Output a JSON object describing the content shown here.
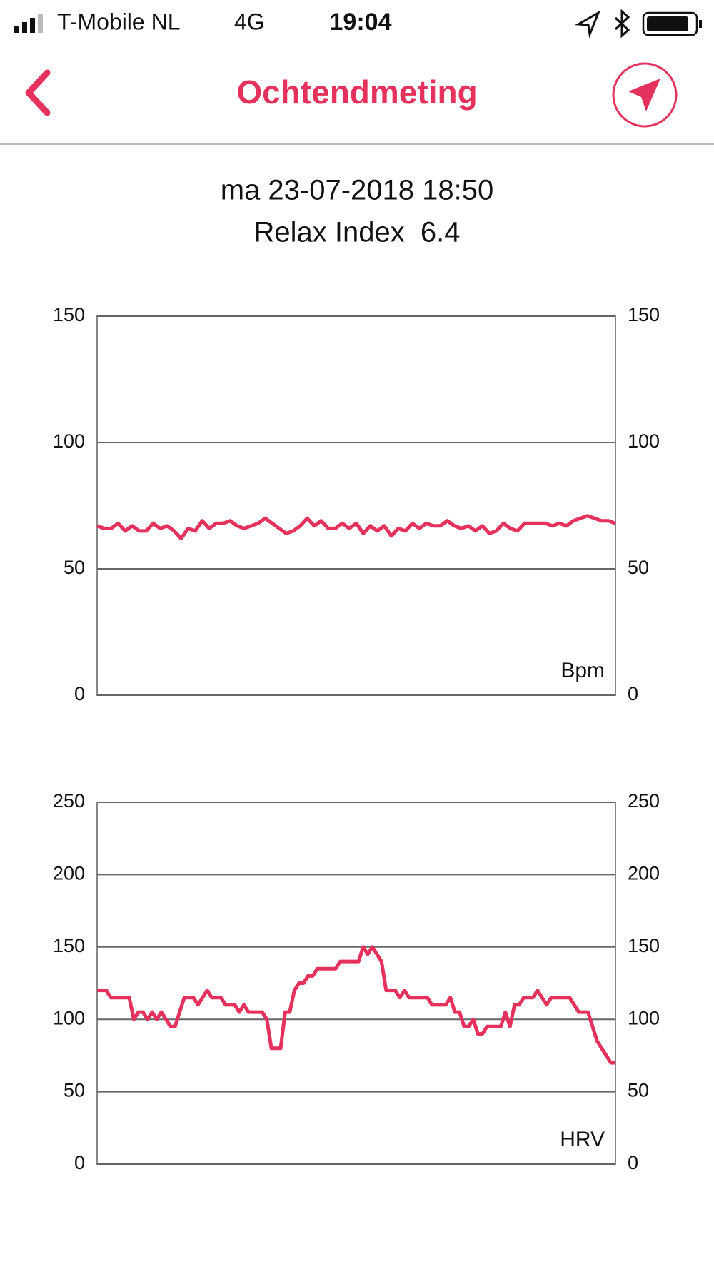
{
  "status_bar": {
    "carrier": "T-Mobile NL",
    "network": "4G",
    "time": "19:04"
  },
  "nav": {
    "title": "Ochtendmeting"
  },
  "header": {
    "date": "ma 23-07-2018 18:50",
    "relax": "Relax Index  6.4"
  },
  "chart_data": [
    {
      "type": "line",
      "grid": true,
      "ylim": [
        0,
        150
      ],
      "yticks": [
        0,
        50,
        100,
        150
      ],
      "y2lim": [
        0,
        150
      ],
      "y2ticks": [
        0,
        50,
        100,
        150
      ],
      "series": [
        {
          "name": "Bpm",
          "color": "#e5325c",
          "values": [
            67,
            66,
            66,
            68,
            65,
            67,
            65,
            65,
            68,
            66,
            67,
            65,
            62,
            66,
            65,
            69,
            66,
            68,
            68,
            69,
            67,
            66,
            67,
            68,
            70,
            68,
            66,
            64,
            65,
            67,
            70,
            67,
            69,
            66,
            66,
            68,
            66,
            68,
            64,
            67,
            65,
            67,
            63,
            66,
            65,
            68,
            66,
            68,
            67,
            67,
            69,
            67,
            66,
            67,
            65,
            67,
            64,
            65,
            68,
            66,
            65,
            68,
            68,
            68,
            68,
            67,
            68,
            67,
            69,
            70,
            71,
            70,
            69,
            69,
            68
          ]
        }
      ]
    },
    {
      "type": "line",
      "grid": true,
      "ylim": [
        0,
        250
      ],
      "yticks": [
        0,
        50,
        100,
        150,
        200,
        250
      ],
      "y2lim": [
        0,
        250
      ],
      "y2ticks": [
        0,
        50,
        100,
        150,
        200,
        250
      ],
      "series": [
        {
          "name": "HRV",
          "color": "#e5325c",
          "values": [
            120,
            120,
            120,
            115,
            115,
            115,
            115,
            115,
            100,
            105,
            105,
            100,
            105,
            100,
            105,
            100,
            95,
            95,
            105,
            115,
            115,
            115,
            110,
            115,
            120,
            115,
            115,
            115,
            110,
            110,
            110,
            105,
            110,
            105,
            105,
            105,
            105,
            100,
            80,
            80,
            80,
            105,
            105,
            120,
            125,
            125,
            130,
            130,
            135,
            135,
            135,
            135,
            135,
            140,
            140,
            140,
            140,
            140,
            150,
            145,
            150,
            145,
            140,
            120,
            120,
            120,
            115,
            120,
            115,
            115,
            115,
            115,
            115,
            110,
            110,
            110,
            110,
            115,
            105,
            105,
            95,
            95,
            100,
            90,
            90,
            95,
            95,
            95,
            95,
            105,
            95,
            110,
            110,
            115,
            115,
            115,
            120,
            115,
            110,
            115,
            115,
            115,
            115,
            115,
            110,
            105,
            105,
            105,
            95,
            85,
            80,
            75,
            70,
            70
          ]
        }
      ]
    }
  ]
}
